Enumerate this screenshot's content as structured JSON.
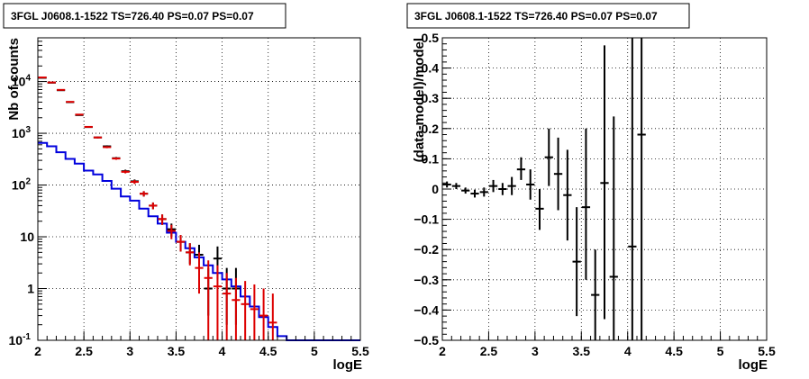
{
  "chart_data": [
    {
      "type": "step_and_errorbars",
      "title": "3FGL J0608.1-1522 TS=726.40 PS=0.07 PS=0.07",
      "xlabel": "logE",
      "ylabel": "Nb of counts",
      "xlim": [
        2,
        5.5
      ],
      "ylim": [
        0.1,
        70000
      ],
      "yscale": "log",
      "grid": true,
      "x_ticks": [
        "2",
        "2.5",
        "3",
        "3.5",
        "4",
        "4.5",
        "5",
        "5.5"
      ],
      "y_ticks": [
        {
          "value": 0.1,
          "base": "10",
          "exp": "-1"
        },
        {
          "value": 1,
          "label": "1"
        },
        {
          "value": 10,
          "label": "10"
        },
        {
          "value": 100,
          "base": "10",
          "exp": "2"
        },
        {
          "value": 1000,
          "base": "10",
          "exp": "3"
        },
        {
          "value": 10000,
          "base": "10",
          "exp": "4"
        }
      ],
      "bin_edges": [
        2.0,
        2.1,
        2.2,
        2.3,
        2.4,
        2.5,
        2.6,
        2.7,
        2.8,
        2.9,
        3.0,
        3.1,
        3.2,
        3.3,
        3.4,
        3.5,
        3.6,
        3.7,
        3.8,
        3.9,
        4.0,
        4.1,
        4.2,
        4.3,
        4.4,
        4.5,
        4.6,
        4.7,
        4.8,
        4.9,
        5.0,
        5.1,
        5.2,
        5.3,
        5.4,
        5.5
      ],
      "series": [
        {
          "kind": "step",
          "color": "#0000dd",
          "values": [
            650,
            560,
            430,
            320,
            260,
            190,
            160,
            120,
            85,
            60,
            50,
            35,
            25,
            18,
            12,
            8,
            6,
            4,
            2.8,
            2.0,
            1.5,
            1.1,
            0.7,
            0.45,
            0.28,
            0.18,
            0.12,
            0.1,
            0.1,
            0.1,
            0.1,
            0.1,
            0.1,
            0.1,
            0.1
          ]
        },
        {
          "kind": "errorbar",
          "color": "#000000",
          "points": [
            {
              "x": 2.05,
              "y": 11800,
              "lo": 11600,
              "hi": 12000
            },
            {
              "x": 2.15,
              "y": 9500,
              "lo": 9350,
              "hi": 9650
            },
            {
              "x": 2.25,
              "y": 6800,
              "lo": 6650,
              "hi": 6950
            },
            {
              "x": 2.35,
              "y": 4000,
              "lo": 3900,
              "hi": 4100
            },
            {
              "x": 2.45,
              "y": 2250,
              "lo": 2200,
              "hi": 2300
            },
            {
              "x": 2.55,
              "y": 1320,
              "lo": 1280,
              "hi": 1360
            },
            {
              "x": 2.65,
              "y": 830,
              "lo": 800,
              "hi": 860
            },
            {
              "x": 2.75,
              "y": 560,
              "lo": 535,
              "hi": 585
            },
            {
              "x": 2.85,
              "y": 330,
              "lo": 312,
              "hi": 348
            },
            {
              "x": 2.95,
              "y": 185,
              "lo": 172,
              "hi": 198
            },
            {
              "x": 3.05,
              "y": 118,
              "lo": 108,
              "hi": 128
            },
            {
              "x": 3.15,
              "y": 68,
              "lo": 60,
              "hi": 76
            },
            {
              "x": 3.25,
              "y": 40,
              "lo": 34,
              "hi": 46
            },
            {
              "x": 3.35,
              "y": 22,
              "lo": 17,
              "hi": 27
            },
            {
              "x": 3.45,
              "y": 14,
              "lo": 10,
              "hi": 18
            },
            {
              "x": 3.55,
              "y": 8,
              "lo": 5.2,
              "hi": 10.8
            },
            {
              "x": 3.65,
              "y": 5,
              "lo": 3.0,
              "hi": 7.5
            },
            {
              "x": 3.75,
              "y": 4.5,
              "lo": 2.5,
              "hi": 7
            },
            {
              "x": 3.85,
              "y": 1.0,
              "lo": 0.3,
              "hi": 2.5
            },
            {
              "x": 3.95,
              "y": 3.8,
              "lo": 1.5,
              "hi": 6.5
            },
            {
              "x": 4.05,
              "y": 1.0,
              "lo": 0.2,
              "hi": 2.5
            },
            {
              "x": 4.15,
              "y": 1.0,
              "lo": 0.2,
              "hi": 2.5
            }
          ]
        },
        {
          "kind": "errorbar",
          "color": "#dd0000",
          "points": [
            {
              "x": 2.05,
              "y": 12000,
              "lo": 11800,
              "hi": 12200
            },
            {
              "x": 2.15,
              "y": 9600,
              "lo": 9450,
              "hi": 9750
            },
            {
              "x": 2.25,
              "y": 6900,
              "lo": 6750,
              "hi": 7050
            },
            {
              "x": 2.35,
              "y": 4050,
              "lo": 3950,
              "hi": 4150
            },
            {
              "x": 2.45,
              "y": 2300,
              "lo": 2250,
              "hi": 2350
            },
            {
              "x": 2.55,
              "y": 1330,
              "lo": 1290,
              "hi": 1370
            },
            {
              "x": 2.65,
              "y": 830,
              "lo": 800,
              "hi": 860
            },
            {
              "x": 2.75,
              "y": 540,
              "lo": 515,
              "hi": 565
            },
            {
              "x": 2.85,
              "y": 325,
              "lo": 308,
              "hi": 342
            },
            {
              "x": 2.95,
              "y": 180,
              "lo": 168,
              "hi": 192
            },
            {
              "x": 3.05,
              "y": 115,
              "lo": 105,
              "hi": 125
            },
            {
              "x": 3.15,
              "y": 68,
              "lo": 60,
              "hi": 76
            },
            {
              "x": 3.25,
              "y": 40,
              "lo": 34,
              "hi": 46
            },
            {
              "x": 3.35,
              "y": 22,
              "lo": 17,
              "hi": 27
            },
            {
              "x": 3.45,
              "y": 13,
              "lo": 9,
              "hi": 17
            },
            {
              "x": 3.55,
              "y": 8,
              "lo": 5.2,
              "hi": 10.8
            },
            {
              "x": 3.65,
              "y": 5,
              "lo": 2.8,
              "hi": 7.5
            },
            {
              "x": 3.75,
              "y": 2.5,
              "lo": 0.8,
              "hi": 5
            },
            {
              "x": 3.85,
              "y": 1.6,
              "lo": 0.1,
              "hi": 3.5
            },
            {
              "x": 3.95,
              "y": 1.1,
              "lo": 0.1,
              "hi": 2.8
            },
            {
              "x": 4.05,
              "y": 0.8,
              "lo": 0.1,
              "hi": 2.0
            },
            {
              "x": 4.15,
              "y": 0.6,
              "lo": 0.1,
              "hi": 1.6
            },
            {
              "x": 4.25,
              "y": 0.5,
              "lo": 0.1,
              "hi": 1.4
            },
            {
              "x": 4.35,
              "y": 0.4,
              "lo": 0.1,
              "hi": 1.2
            },
            {
              "x": 4.45,
              "y": 0.3,
              "lo": 0.1,
              "hi": 1.0
            },
            {
              "x": 4.55,
              "y": 0.22,
              "lo": 0.1,
              "hi": 0.8
            }
          ]
        }
      ]
    },
    {
      "type": "errorbar",
      "title": "3FGL J0608.1-1522 TS=726.40 PS=0.07 PS=0.07",
      "xlabel": "logE",
      "ylabel": "(data-model)/model",
      "xlim": [
        2,
        5.5
      ],
      "ylim": [
        -0.5,
        0.5
      ],
      "grid": true,
      "x_ticks": [
        "2",
        "2.5",
        "3",
        "3.5",
        "4",
        "4.5",
        "5",
        "5.5"
      ],
      "y_ticks": [
        "-0.5",
        "-0.4",
        "-0.3",
        "-0.2",
        "-0.1",
        "0",
        "0.1",
        "0.2",
        "0.3",
        "0.4",
        "0.5"
      ],
      "series": [
        {
          "color": "#000000",
          "points": [
            {
              "x": 2.05,
              "y": 0.015,
              "lo": 0.005,
              "hi": 0.025
            },
            {
              "x": 2.15,
              "y": 0.01,
              "lo": 0.0,
              "hi": 0.02
            },
            {
              "x": 2.25,
              "y": -0.005,
              "lo": -0.015,
              "hi": 0.005
            },
            {
              "x": 2.35,
              "y": -0.015,
              "lo": -0.028,
              "hi": -0.002
            },
            {
              "x": 2.45,
              "y": -0.01,
              "lo": -0.025,
              "hi": 0.005
            },
            {
              "x": 2.55,
              "y": 0.01,
              "lo": -0.01,
              "hi": 0.03
            },
            {
              "x": 2.65,
              "y": 0.0,
              "lo": -0.02,
              "hi": 0.02
            },
            {
              "x": 2.75,
              "y": 0.01,
              "lo": -0.02,
              "hi": 0.04
            },
            {
              "x": 2.85,
              "y": 0.065,
              "lo": 0.03,
              "hi": 0.105
            },
            {
              "x": 2.95,
              "y": 0.015,
              "lo": -0.035,
              "hi": 0.065
            },
            {
              "x": 3.05,
              "y": -0.065,
              "lo": -0.135,
              "hi": 0.0
            },
            {
              "x": 3.15,
              "y": 0.105,
              "lo": 0.01,
              "hi": 0.2
            },
            {
              "x": 3.25,
              "y": 0.05,
              "lo": -0.07,
              "hi": 0.17
            },
            {
              "x": 3.35,
              "y": -0.02,
              "lo": -0.17,
              "hi": 0.13
            },
            {
              "x": 3.45,
              "y": -0.24,
              "lo": -0.42,
              "hi": -0.06
            },
            {
              "x": 3.55,
              "y": -0.06,
              "lo": -0.3,
              "hi": 0.2
            },
            {
              "x": 3.65,
              "y": -0.35,
              "lo": -0.5,
              "hi": -0.2
            },
            {
              "x": 3.75,
              "y": 0.02,
              "lo": -0.43,
              "hi": 0.475
            },
            {
              "x": 3.85,
              "y": -0.29,
              "lo": -0.5,
              "hi": 0.24
            },
            {
              "x": 4.05,
              "y": -0.19,
              "lo": -0.5,
              "hi": 0.5
            },
            {
              "x": 4.15,
              "y": 0.18,
              "lo": -0.5,
              "hi": 0.5
            }
          ]
        }
      ]
    }
  ]
}
